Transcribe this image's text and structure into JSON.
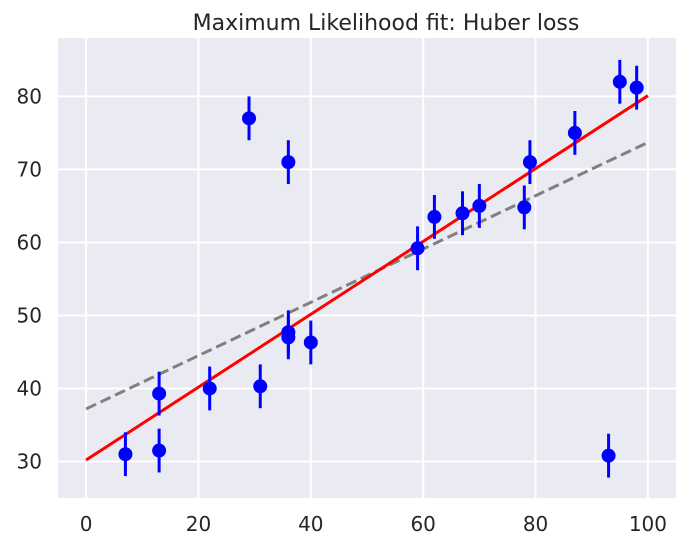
{
  "chart_data": {
    "type": "scatter",
    "title": "Maximum Likelihood fit: Huber loss",
    "xlabel": "",
    "ylabel": "",
    "xlim": [
      -5,
      105
    ],
    "ylim": [
      25,
      88
    ],
    "xticks": [
      0,
      20,
      40,
      60,
      80,
      100
    ],
    "yticks": [
      30,
      40,
      50,
      60,
      70,
      80
    ],
    "grid": true,
    "background": "#eaeaf2",
    "grid_color": "#ffffff",
    "points": {
      "color": "#0000ff",
      "x": [
        7,
        13,
        13,
        22,
        29,
        31,
        36,
        36,
        36,
        40,
        59,
        62,
        67,
        70,
        78,
        79,
        87,
        93,
        95,
        98
      ],
      "y": [
        31,
        31.5,
        39.3,
        40,
        77,
        40.3,
        71,
        47.7,
        47,
        46.3,
        59.2,
        63.5,
        64,
        65,
        64.8,
        71,
        75,
        30.8,
        82,
        81.2
      ],
      "yerr": 3
    },
    "lines": [
      {
        "style": "dashed",
        "color": "#808080",
        "x": [
          0,
          100
        ],
        "y": [
          37.2,
          73.7
        ]
      },
      {
        "style": "solid",
        "color": "#ff0000",
        "x": [
          0,
          100
        ],
        "y": [
          30.2,
          80.1
        ]
      }
    ]
  }
}
